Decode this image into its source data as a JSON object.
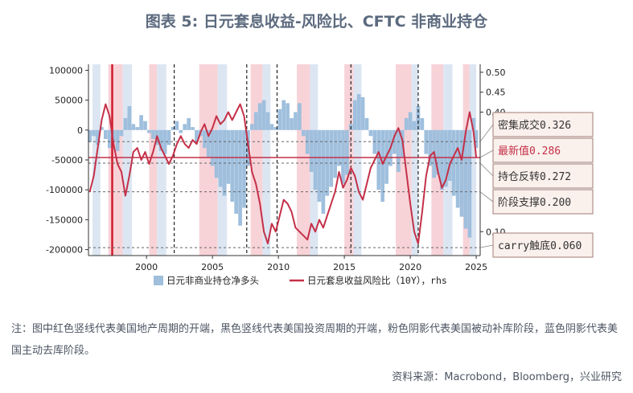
{
  "title": "图表 5:  日元套息收益-风险比、CFTC 非商业持仓",
  "note": "注：图中红色竖线代表美国地产周期的开端，黑色竖线代表美国投资周期的开端，粉色阴影代表美国被动补库阶段，蓝色阴影代表美国主动去库阶段。",
  "source": "资料来源：Macrobond，Bloomberg，兴业研究",
  "colors": {
    "bar": "#9fbfdd",
    "line": "#c43048",
    "pink": "#f7d3d8",
    "blue": "#dce6f2",
    "accent_red": "#d01c2e",
    "title": "#5c6a7e"
  },
  "chart_data": {
    "type": "line",
    "title": "",
    "xlabel": "",
    "ylabel": "",
    "xlim": [
      1995.6,
      2025.3
    ],
    "ylim_left": [
      -210000,
      110000
    ],
    "ylim_right": [
      0.04,
      0.52
    ],
    "x_ticks": [
      "2000",
      "2005",
      "2010",
      "2015",
      "2020",
      "2025"
    ],
    "left_ticks": [
      "100000",
      "50000",
      "0",
      "-50000",
      "-100000",
      "-150000",
      "-200000"
    ],
    "right_ticks": [
      "0.50",
      "0.45",
      "0.40",
      "0.10"
    ],
    "legend": {
      "placement": "bottom",
      "bars": "日元非商业持仓净多头",
      "line": "日元套息收益风险比（10Y），rhs"
    },
    "red_vline": 1997.4,
    "black_vlines": [
      2002.1,
      2007.6,
      2009.9,
      2015.5,
      2020.6
    ],
    "pink_shades": [
      [
        1997.1,
        1998.2
      ],
      [
        2000.2,
        2000.8
      ],
      [
        2004.0,
        2005.4
      ],
      [
        2007.9,
        2008.8
      ],
      [
        2011.4,
        2012.4
      ],
      [
        2015.0,
        2015.7
      ],
      [
        2018.9,
        2020.1
      ],
      [
        2021.6,
        2022.5
      ],
      [
        2024.0,
        2024.5
      ]
    ],
    "blue_shades": [
      [
        1995.9,
        1996.5
      ],
      [
        1998.2,
        1998.9
      ],
      [
        2000.8,
        2001.5
      ],
      [
        2005.4,
        2006.1
      ],
      [
        2008.8,
        2009.4
      ],
      [
        2012.4,
        2013.0
      ],
      [
        2015.7,
        2016.3
      ],
      [
        2020.1,
        2020.6
      ],
      [
        2022.5,
        2023.2
      ],
      [
        2024.5,
        2025.0
      ]
    ],
    "reference_lines": [
      {
        "label": "密集成交0.326",
        "value": 0.326,
        "style": "dashed"
      },
      {
        "label": "最新值0.286",
        "value": 0.286,
        "style": "solid",
        "color": "#c43048"
      },
      {
        "label": "持仓反转0.272",
        "value": 0.272,
        "style": "dashed"
      },
      {
        "label": "阶段支撑0.200",
        "value": 0.2,
        "style": "dashed"
      },
      {
        "label": "carry触底0.060",
        "value": 0.06,
        "style": "dashed"
      }
    ],
    "series": [
      {
        "kind": "bar",
        "axis": "left",
        "x": [
          1995.7,
          1996.0,
          1996.3,
          1996.6,
          1996.9,
          1997.2,
          1997.5,
          1997.8,
          1998.1,
          1998.4,
          1998.7,
          1999.0,
          1999.3,
          1999.6,
          1999.9,
          2000.2,
          2000.5,
          2000.8,
          2001.1,
          2001.4,
          2001.7,
          2002.0,
          2002.3,
          2002.6,
          2002.9,
          2003.2,
          2003.5,
          2003.8,
          2004.1,
          2004.4,
          2004.7,
          2005.0,
          2005.3,
          2005.6,
          2005.9,
          2006.2,
          2006.5,
          2006.8,
          2007.1,
          2007.4,
          2007.7,
          2008.0,
          2008.3,
          2008.6,
          2008.9,
          2009.2,
          2009.5,
          2009.8,
          2010.1,
          2010.4,
          2010.7,
          2011.0,
          2011.3,
          2011.6,
          2011.9,
          2012.2,
          2012.5,
          2012.8,
          2013.1,
          2013.4,
          2013.7,
          2014.0,
          2014.3,
          2014.6,
          2014.9,
          2015.2,
          2015.5,
          2015.8,
          2016.1,
          2016.4,
          2016.7,
          2017.0,
          2017.3,
          2017.6,
          2017.9,
          2018.2,
          2018.5,
          2018.8,
          2019.1,
          2019.4,
          2019.7,
          2020.0,
          2020.3,
          2020.6,
          2020.9,
          2021.2,
          2021.5,
          2021.8,
          2022.1,
          2022.4,
          2022.7,
          2023.0,
          2023.3,
          2023.6,
          2023.9,
          2024.2,
          2024.5,
          2024.8,
          2025.0
        ],
        "values": [
          -20000,
          -10000,
          -25000,
          5000,
          -15000,
          -30000,
          -20000,
          -35000,
          -10000,
          20000,
          40000,
          10000,
          5000,
          25000,
          15000,
          -5000,
          -15000,
          -25000,
          -35000,
          -40000,
          -25000,
          5000,
          15000,
          -5000,
          10000,
          20000,
          5000,
          -20000,
          -10000,
          -30000,
          -45000,
          -60000,
          -80000,
          -95000,
          -110000,
          -90000,
          -120000,
          -140000,
          -160000,
          -130000,
          -60000,
          10000,
          30000,
          45000,
          50000,
          30000,
          10000,
          5000,
          35000,
          50000,
          45000,
          20000,
          30000,
          45000,
          -10000,
          -40000,
          -70000,
          -100000,
          -120000,
          -140000,
          -110000,
          -95000,
          -80000,
          -60000,
          -90000,
          -75000,
          10000,
          50000,
          60000,
          55000,
          20000,
          -10000,
          -40000,
          -100000,
          -120000,
          -90000,
          -60000,
          -40000,
          -70000,
          -45000,
          20000,
          30000,
          15000,
          40000,
          20000,
          -40000,
          -60000,
          -80000,
          -75000,
          -100000,
          -95000,
          -85000,
          -110000,
          -130000,
          -145000,
          -165000,
          -180000,
          20000,
          -30000
        ]
      },
      {
        "kind": "line",
        "axis": "right",
        "x": [
          1995.7,
          1996.0,
          1996.3,
          1996.6,
          1996.9,
          1997.2,
          1997.5,
          1997.8,
          1998.1,
          1998.4,
          1998.7,
          1999.0,
          1999.3,
          1999.6,
          1999.9,
          2000.2,
          2000.5,
          2000.8,
          2001.1,
          2001.4,
          2001.7,
          2002.0,
          2002.3,
          2002.6,
          2002.9,
          2003.2,
          2003.5,
          2003.8,
          2004.1,
          2004.4,
          2004.7,
          2005.0,
          2005.3,
          2005.6,
          2005.9,
          2006.2,
          2006.5,
          2006.8,
          2007.1,
          2007.4,
          2007.7,
          2008.0,
          2008.3,
          2008.6,
          2008.9,
          2009.2,
          2009.5,
          2009.8,
          2010.1,
          2010.4,
          2010.7,
          2011.0,
          2011.3,
          2011.6,
          2011.9,
          2012.2,
          2012.5,
          2012.8,
          2013.1,
          2013.4,
          2013.7,
          2014.0,
          2014.3,
          2014.6,
          2014.9,
          2015.2,
          2015.5,
          2015.8,
          2016.1,
          2016.4,
          2016.7,
          2017.0,
          2017.3,
          2017.6,
          2017.9,
          2018.2,
          2018.5,
          2018.8,
          2019.1,
          2019.4,
          2019.7,
          2020.0,
          2020.3,
          2020.6,
          2020.9,
          2021.2,
          2021.5,
          2021.8,
          2022.1,
          2022.4,
          2022.7,
          2023.0,
          2023.3,
          2023.6,
          2023.9,
          2024.2,
          2024.5,
          2024.8,
          2025.0
        ],
        "values": [
          0.2,
          0.24,
          0.31,
          0.38,
          0.42,
          0.39,
          0.32,
          0.27,
          0.25,
          0.19,
          0.24,
          0.3,
          0.31,
          0.28,
          0.3,
          0.27,
          0.3,
          0.34,
          0.31,
          0.29,
          0.27,
          0.29,
          0.32,
          0.34,
          0.32,
          0.31,
          0.33,
          0.32,
          0.35,
          0.37,
          0.34,
          0.36,
          0.39,
          0.37,
          0.38,
          0.4,
          0.38,
          0.4,
          0.42,
          0.39,
          0.32,
          0.25,
          0.22,
          0.17,
          0.1,
          0.07,
          0.12,
          0.1,
          0.14,
          0.18,
          0.17,
          0.15,
          0.11,
          0.1,
          0.09,
          0.08,
          0.12,
          0.1,
          0.13,
          0.11,
          0.14,
          0.17,
          0.2,
          0.25,
          0.21,
          0.23,
          0.26,
          0.24,
          0.2,
          0.18,
          0.22,
          0.26,
          0.28,
          0.3,
          0.27,
          0.29,
          0.31,
          0.34,
          0.36,
          0.33,
          0.25,
          0.17,
          0.1,
          0.07,
          0.15,
          0.24,
          0.29,
          0.3,
          0.25,
          0.21,
          0.23,
          0.27,
          0.29,
          0.31,
          0.28,
          0.35,
          0.4,
          0.35,
          0.286
        ]
      }
    ]
  }
}
